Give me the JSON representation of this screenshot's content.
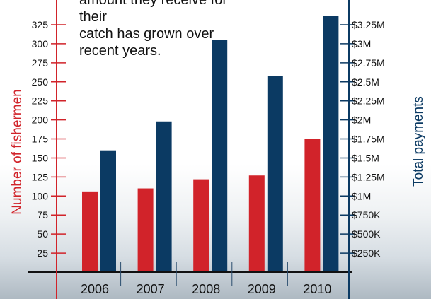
{
  "chart_data": {
    "type": "bar",
    "categories": [
      "2006",
      "2007",
      "2008",
      "2009",
      "2010"
    ],
    "series": [
      {
        "name": "Number of fishermen",
        "axis": "left",
        "color": "#d1232a",
        "values": [
          106,
          110,
          122,
          127,
          175
        ]
      },
      {
        "name": "Total payments",
        "axis": "right",
        "color": "#0b3a63",
        "values": [
          1600000,
          1980000,
          3050000,
          2580000,
          3370000
        ]
      }
    ],
    "ylabel_left": "Number of fishermen",
    "ylabel_right": "Total payments",
    "ylim_left": [
      0,
      325
    ],
    "ylim_right": [
      0,
      3250000
    ],
    "yticks_left": [
      "25",
      "50",
      "75",
      "100",
      "125",
      "150",
      "175",
      "200",
      "225",
      "250",
      "275",
      "300",
      "325"
    ],
    "yticks_right": [
      "$250K",
      "$500K",
      "$750K",
      "$1M",
      "$1.25M",
      "$1.5M",
      "$1.75M",
      "$2M",
      "$2.25M",
      "$2.5M",
      "$2.75M",
      "$3M",
      "$3.25M"
    ],
    "annotation": "amount they receive for their\ncatch has grown over\nrecent years.",
    "colors": {
      "left_axis": "#d1232a",
      "right_axis": "#0b3a63",
      "baseline": "#111111"
    }
  }
}
